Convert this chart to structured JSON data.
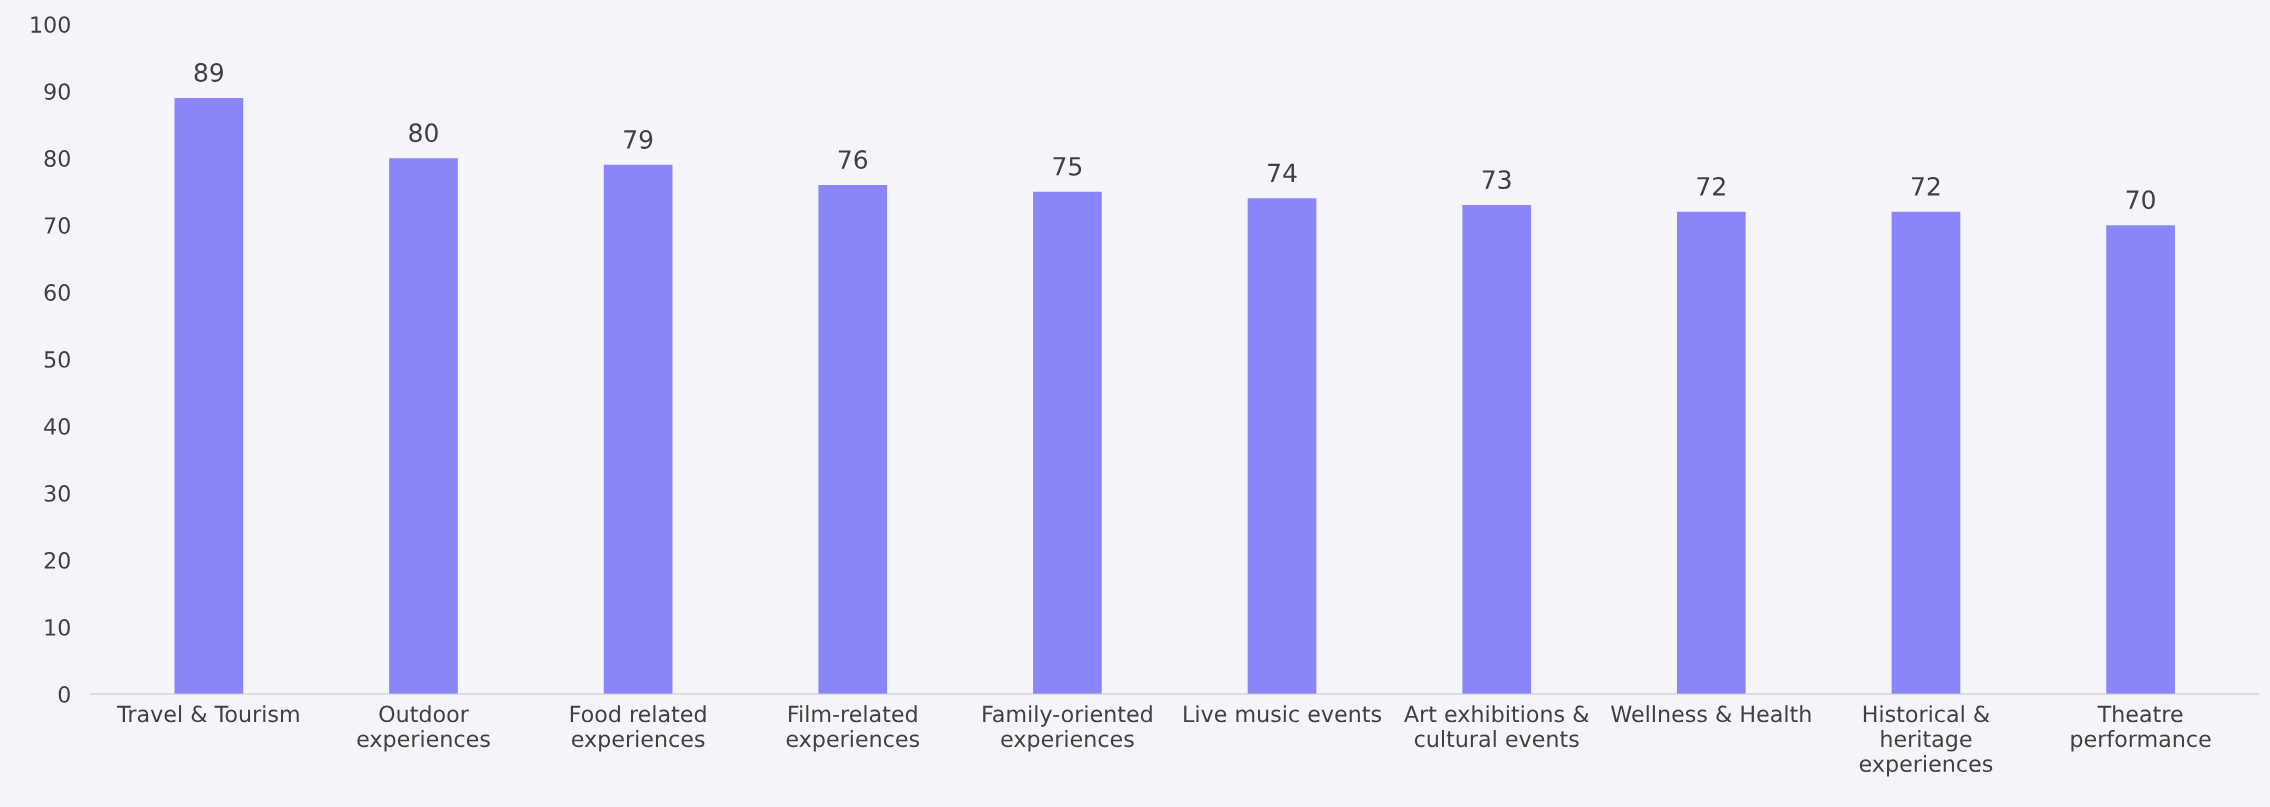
{
  "chart_data": {
    "type": "bar",
    "categories": [
      "Travel & Tourism",
      "Outdoor\nexperiences",
      "Food related\nexperiences",
      "Film-related\nexperiences",
      "Family-oriented\nexperiences",
      "Live music events",
      "Art exhibitions &\ncultural events",
      "Wellness & Health",
      "Historical &\nheritage\nexperiences",
      "Theatre\nperformance"
    ],
    "values": [
      89,
      80,
      79,
      76,
      75,
      74,
      73,
      72,
      72,
      70
    ],
    "color": "#8a86fa",
    "ylim": [
      0,
      100
    ],
    "yticks": [
      0,
      10,
      20,
      30,
      40,
      50,
      60,
      70,
      80,
      90,
      100
    ],
    "data_labels": true,
    "grid": false,
    "legend": false
  }
}
